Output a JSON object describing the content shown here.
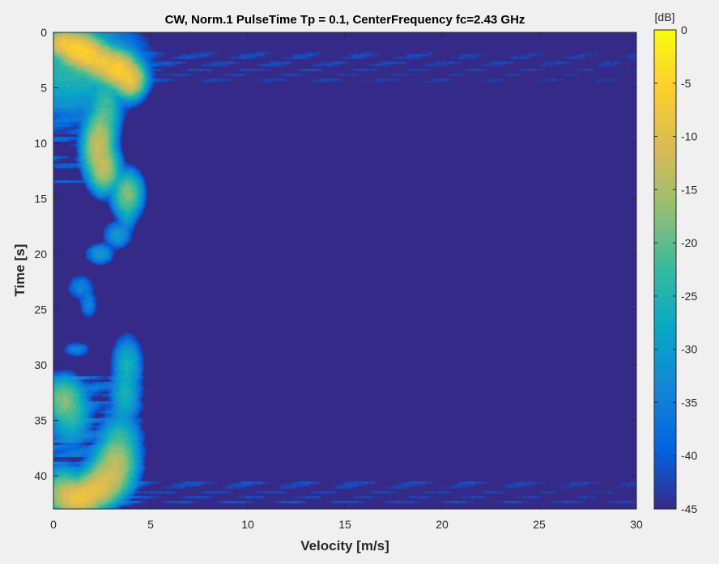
{
  "chart_data": {
    "type": "heatmap",
    "title": "CW, Norm.1 PulseTime Tp = 0.1, CenterFrequency fc=2.43 GHz",
    "xlabel": "Velocity [m/s]",
    "ylabel": "Time [s]",
    "xlim": [
      0,
      30
    ],
    "ylim": [
      0,
      43
    ],
    "y_reversed": true,
    "xticks": [
      0,
      5,
      10,
      15,
      20,
      25,
      30
    ],
    "yticks": [
      0,
      5,
      10,
      15,
      20,
      25,
      30,
      35,
      40
    ],
    "colormap": "parula",
    "colorbar": {
      "label": "[dB]",
      "range": [
        -45,
        0
      ],
      "ticks": [
        0,
        -5,
        -10,
        -15,
        -20,
        -25,
        -30,
        -35,
        -40,
        -45
      ]
    },
    "background_db": -45,
    "features": [
      {
        "t": 1.0,
        "v": 0.5,
        "db": -8,
        "st": 0.5,
        "sv": 0.3
      },
      {
        "t": 1.5,
        "v": 1.2,
        "db": -6,
        "st": 0.6,
        "sv": 0.35
      },
      {
        "t": 2.0,
        "v": 1.8,
        "db": -7,
        "st": 0.6,
        "sv": 0.35
      },
      {
        "t": 2.7,
        "v": 2.5,
        "db": -8,
        "st": 0.6,
        "sv": 0.35
      },
      {
        "t": 3.3,
        "v": 3.3,
        "db": -6,
        "st": 0.6,
        "sv": 0.35
      },
      {
        "t": 4.2,
        "v": 3.9,
        "db": -8,
        "st": 0.6,
        "sv": 0.3
      },
      {
        "t": 3.0,
        "v": 1.0,
        "db": -24,
        "st": 1.8,
        "sv": 1.4
      },
      {
        "t": 7.0,
        "v": 2.7,
        "db": -22,
        "st": 1.2,
        "sv": 0.3
      },
      {
        "t": 9.0,
        "v": 2.4,
        "db": -18,
        "st": 1.0,
        "sv": 0.3
      },
      {
        "t": 10.5,
        "v": 2.3,
        "db": -13,
        "st": 1.0,
        "sv": 0.3
      },
      {
        "t": 12.3,
        "v": 2.6,
        "db": -14,
        "st": 0.8,
        "sv": 0.3
      },
      {
        "t": 14.6,
        "v": 3.8,
        "db": -18,
        "st": 0.8,
        "sv": 0.3
      },
      {
        "t": 16.5,
        "v": 3.8,
        "db": -30,
        "st": 0.6,
        "sv": 0.2
      },
      {
        "t": 18.3,
        "v": 3.3,
        "db": -30,
        "st": 0.5,
        "sv": 0.3
      },
      {
        "t": 20.0,
        "v": 2.4,
        "db": -30,
        "st": 0.4,
        "sv": 0.3
      },
      {
        "t": 23.0,
        "v": 1.4,
        "db": -34,
        "st": 0.5,
        "sv": 0.3
      },
      {
        "t": 24.5,
        "v": 1.8,
        "db": -34,
        "st": 0.6,
        "sv": 0.2
      },
      {
        "t": 28.6,
        "v": 1.2,
        "db": -34,
        "st": 0.3,
        "sv": 0.3
      },
      {
        "t": 30.0,
        "v": 3.8,
        "db": -26,
        "st": 1.0,
        "sv": 0.3
      },
      {
        "t": 33.2,
        "v": 0.5,
        "db": -18,
        "st": 0.8,
        "sv": 0.4
      },
      {
        "t": 34.6,
        "v": 0.9,
        "db": -24,
        "st": 1.0,
        "sv": 0.4
      },
      {
        "t": 32.8,
        "v": 3.7,
        "db": -26,
        "st": 1.0,
        "sv": 0.3
      },
      {
        "t": 37.0,
        "v": 3.4,
        "db": -22,
        "st": 1.0,
        "sv": 0.4
      },
      {
        "t": 38.8,
        "v": 3.2,
        "db": -14,
        "st": 0.8,
        "sv": 0.4
      },
      {
        "t": 40.2,
        "v": 2.8,
        "db": -12,
        "st": 0.7,
        "sv": 0.45
      },
      {
        "t": 41.2,
        "v": 2.2,
        "db": -10,
        "st": 0.6,
        "sv": 0.45
      },
      {
        "t": 42.0,
        "v": 1.3,
        "db": -8,
        "st": 0.6,
        "sv": 0.5
      },
      {
        "t": 41.5,
        "v": 0.5,
        "db": -16,
        "st": 0.8,
        "sv": 0.4
      }
    ],
    "stripe_bands": [
      {
        "t0": 0.5,
        "t1": 7.0,
        "vmax": 4.5,
        "db": -36
      },
      {
        "t0": 7.0,
        "t1": 14.0,
        "vmax": 3.2,
        "db": -38
      },
      {
        "t0": 31.0,
        "t1": 43.0,
        "vmax": 5.0,
        "db": -34
      },
      {
        "t0": 1.5,
        "t1": 4.5,
        "vmax": 30.0,
        "db": -42
      },
      {
        "t0": 40.5,
        "t1": 42.5,
        "vmax": 30.0,
        "db": -41
      }
    ]
  }
}
